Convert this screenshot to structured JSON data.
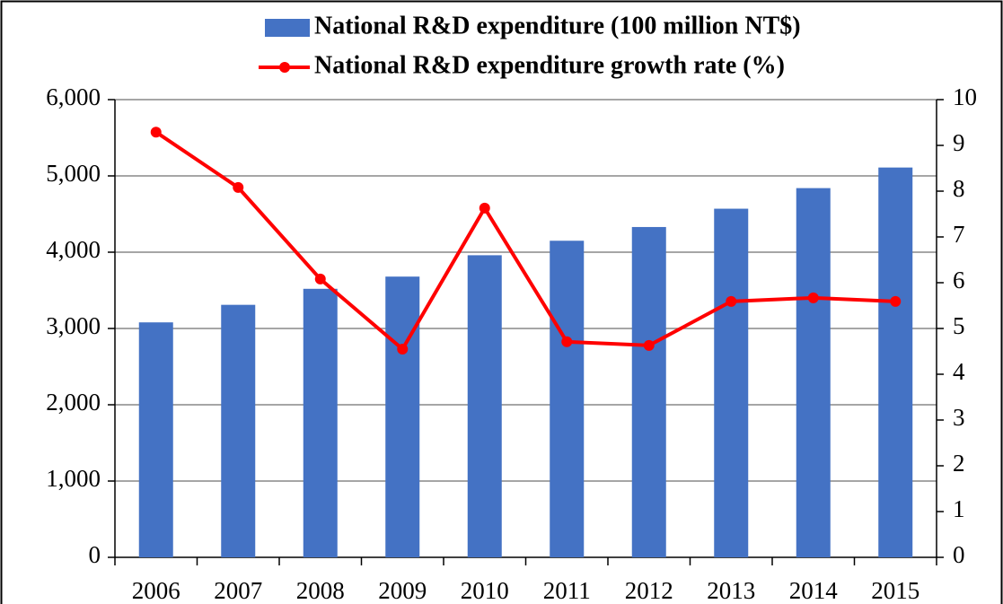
{
  "chart_data": {
    "type": "bar",
    "categories": [
      "2006",
      "2007",
      "2008",
      "2009",
      "2010",
      "2011",
      "2012",
      "2013",
      "2014",
      "2015"
    ],
    "series": [
      {
        "name": "National R&D expenditure (100 million NT$)",
        "type": "bar",
        "color": "#4472c4",
        "axis": "y",
        "values": [
          3080,
          3310,
          3520,
          3680,
          3960,
          4150,
          4330,
          4570,
          4840,
          5110
        ]
      },
      {
        "name": "National R&D expenditure growth rate (%)",
        "type": "line",
        "color": "#ff0000",
        "axis": "y2",
        "values": [
          9.29,
          8.08,
          6.08,
          4.55,
          7.63,
          4.71,
          4.63,
          5.59,
          5.67,
          5.59
        ]
      }
    ],
    "ylim": [
      0,
      6000
    ],
    "yticks": [
      0,
      {
        "value": 1000,
        "label": "1,000"
      },
      {
        "value": 2000,
        "label": "2,000"
      },
      {
        "value": 3000,
        "label": "3,000"
      },
      {
        "value": 4000,
        "label": "4,000"
      },
      {
        "value": 5000,
        "label": "5,000"
      },
      {
        "value": 6000,
        "label": "6,000"
      }
    ],
    "y2lim": [
      0,
      10
    ],
    "y2ticks": [
      0,
      1,
      2,
      3,
      4,
      5,
      6,
      7,
      8,
      9,
      10
    ],
    "grid": true
  }
}
